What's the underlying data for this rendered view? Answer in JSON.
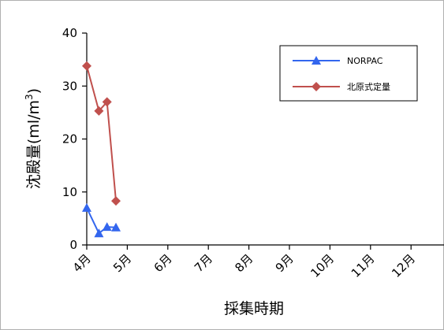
{
  "chart_data": {
    "type": "line",
    "xlabel": "採集時期",
    "ylabel": "沈殿量",
    "ylabel_unit_prefix": "(ml/m",
    "ylabel_unit_sup": "3",
    "ylabel_unit_suffix": ")",
    "categories": [
      "4月",
      "5月",
      "6月",
      "7月",
      "8月",
      "9月",
      "10月",
      "11月",
      "12月"
    ],
    "ylim": [
      0,
      40
    ],
    "yticks": [
      0,
      10,
      20,
      30,
      40
    ],
    "grid": false,
    "legend_position": "top-right",
    "series": [
      {
        "name": "NORPAC",
        "color": "#3366ee",
        "marker": "triangle",
        "points": [
          {
            "x": 0.0,
            "y": 7
          },
          {
            "x": 0.3,
            "y": 2.2
          },
          {
            "x": 0.5,
            "y": 3.4
          },
          {
            "x": 0.72,
            "y": 3.3
          }
        ]
      },
      {
        "name": "北原式定量",
        "color": "#c0504d",
        "marker": "diamond",
        "points": [
          {
            "x": 0.0,
            "y": 33.8
          },
          {
            "x": 0.3,
            "y": 25.3
          },
          {
            "x": 0.5,
            "y": 27
          },
          {
            "x": 0.72,
            "y": 8.3
          }
        ]
      }
    ]
  }
}
